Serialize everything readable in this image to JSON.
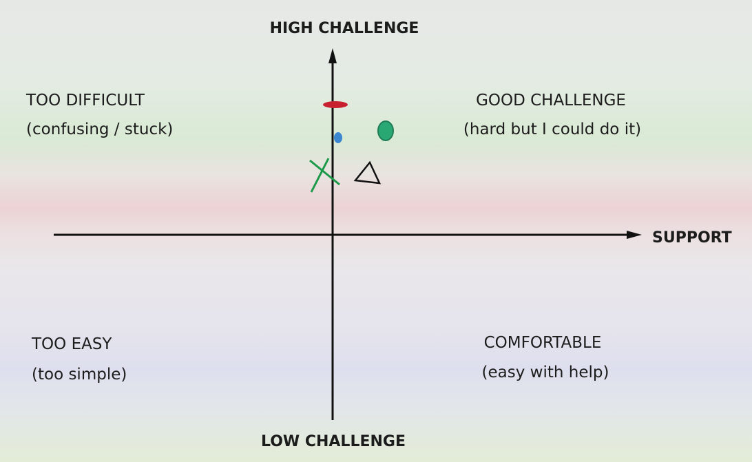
{
  "axes": {
    "top": "HIGH CHALLENGE",
    "bottom": "LOW CHALLENGE",
    "right": "SUPPORT"
  },
  "quadrants": [
    {
      "title": "TOO DIFFICULT",
      "subtitle": "(confusing / stuck)"
    },
    {
      "title": "GOOD CHALLENGE",
      "subtitle": "(hard but I could do it)"
    },
    {
      "title": "TOO EASY",
      "subtitle": "(too simple)"
    },
    {
      "title": "COMFORTABLE",
      "subtitle": "(easy with help)"
    }
  ]
}
